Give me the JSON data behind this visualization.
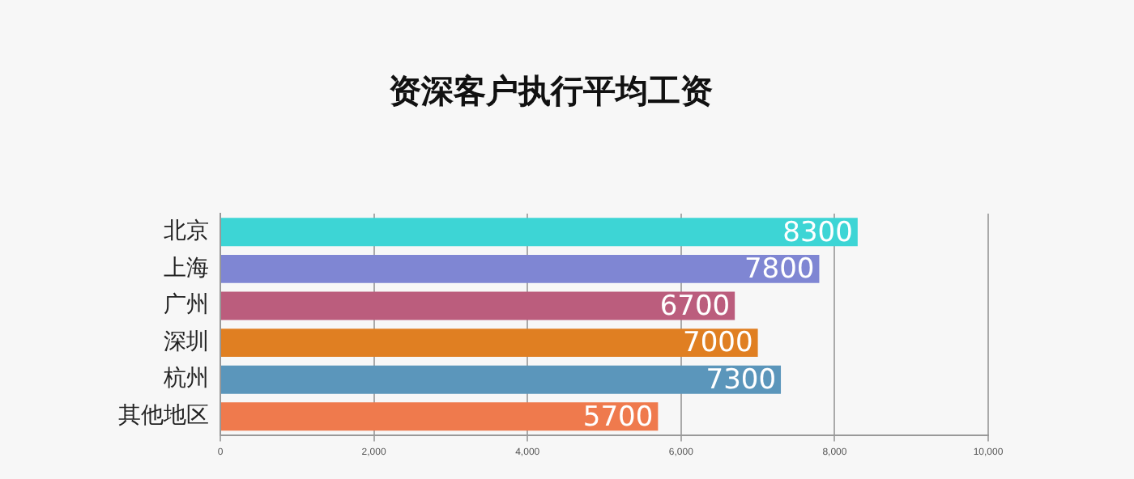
{
  "chart_data": {
    "type": "bar",
    "title": "资深客户执行平均工资",
    "orientation": "horizontal",
    "categories": [
      "北京",
      "上海",
      "广州",
      "深圳",
      "杭州",
      "其他地区"
    ],
    "values": [
      8300,
      7800,
      6700,
      7000,
      7300,
      5700
    ],
    "colors": [
      "#3dd5d5",
      "#7f86d3",
      "#bb5d7d",
      "#e07f22",
      "#5b96bb",
      "#ef7a4d"
    ],
    "xlim": [
      0,
      10000
    ],
    "xticks": [
      0,
      {
        "value": 2000,
        "label": "2,000"
      },
      {
        "value": 4000,
        "label": "4,000"
      },
      {
        "value": 6000,
        "label": "6,000"
      },
      {
        "value": 8000,
        "label": "8,000"
      },
      {
        "value": 10000,
        "label": "10,000"
      }
    ],
    "grid": "x",
    "legend": false,
    "data_labels": true
  }
}
